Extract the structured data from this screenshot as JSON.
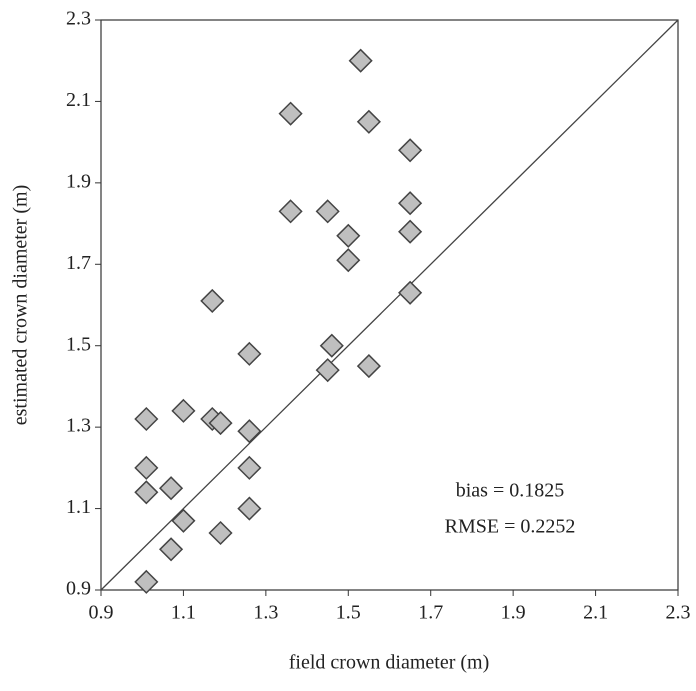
{
  "chart_data": {
    "type": "scatter",
    "x_label": "field crown diameter (m)",
    "y_label": "estimated crown diameter (m)",
    "annotations": [
      "bias = 0.1825",
      "RMSE = 0.2252"
    ],
    "xlim": [
      0.9,
      2.3
    ],
    "ylim": [
      0.9,
      2.3
    ],
    "xticks": [
      0.9,
      1.1,
      1.3,
      1.5,
      1.7,
      1.9,
      2.1,
      2.3
    ],
    "yticks": [
      0.9,
      1.1,
      1.3,
      1.5,
      1.7,
      1.9,
      2.1,
      2.3
    ],
    "color": "#bfbfbf",
    "x": [
      1.53,
      1.36,
      1.55,
      1.65,
      1.36,
      1.45,
      1.65,
      1.5,
      1.65,
      1.5,
      1.17,
      1.65,
      1.26,
      1.46,
      1.45,
      1.55,
      1.01,
      1.1,
      1.17,
      1.19,
      1.26,
      1.01,
      1.26,
      1.07,
      1.01,
      1.1,
      1.26,
      1.19,
      1.07,
      1.01
    ],
    "y": [
      2.2,
      2.07,
      2.05,
      1.98,
      1.83,
      1.83,
      1.85,
      1.77,
      1.78,
      1.71,
      1.61,
      1.63,
      1.48,
      1.5,
      1.44,
      1.45,
      1.32,
      1.34,
      1.32,
      1.31,
      1.29,
      1.2,
      1.2,
      1.15,
      1.14,
      1.07,
      1.1,
      1.04,
      1.0,
      0.92
    ]
  }
}
